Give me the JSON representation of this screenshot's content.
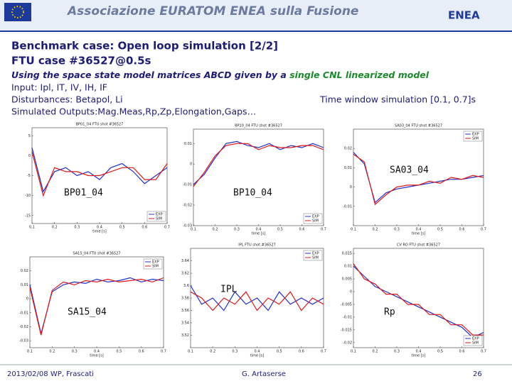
{
  "header": {
    "banner": "Associazione EURATOM ENEA sulla Fusione",
    "logo": "ENEA"
  },
  "slide": {
    "title_line1": "Benchmark case: Open loop simulation [2/2]",
    "title_line2": "FTU case #36527@0.5s",
    "subtitle_start": "Using the space state model matrices ABCD given by a",
    "subtitle_highlight": "single CNL linearized model",
    "input": "Input: Ipl, IT, IV, IH, IF",
    "disturbances": "Disturbances: Betapol, Li",
    "outputs": "Simulated Outputs:Mag.Meas,Rp,Zp,Elongation,Gaps…",
    "time_window": "Time window simulation [0.1, 0.7]s"
  },
  "footer": {
    "date": "2013/02/08  WP, Frascati",
    "author": "G. Artaserse",
    "page": "26"
  },
  "chart_data": [
    {
      "type": "line",
      "title": "BP01_04  FTU shot #36527",
      "annotation": "BP01_04",
      "xlabel": "time [s]",
      "legend": "lower right",
      "x": [
        0.1,
        0.15,
        0.2,
        0.25,
        0.3,
        0.35,
        0.4,
        0.45,
        0.5,
        0.55,
        0.6,
        0.65,
        0.7
      ],
      "xlim": [
        0.1,
        0.7
      ],
      "xticks": [
        0.1,
        0.2,
        0.3,
        0.4,
        0.5,
        0.6,
        0.7
      ],
      "ylim": [
        -17,
        7
      ],
      "yticks": [
        -15,
        -10,
        -5,
        0,
        5
      ],
      "series": [
        {
          "name": "EXP",
          "color": "#2030d0",
          "values": [
            2,
            -9,
            -4,
            -3,
            -5,
            -4,
            -6,
            -3,
            -2,
            -4,
            -7,
            -5,
            -3
          ]
        },
        {
          "name": "SIM",
          "color": "#e01818",
          "values": [
            1,
            -10,
            -3,
            -4,
            -4,
            -5,
            -5,
            -4,
            -3,
            -3,
            -6,
            -6,
            -2
          ]
        }
      ]
    },
    {
      "type": "line",
      "title": "BP10_04  FTU shot #36527",
      "annotation": "BP10_04",
      "xlabel": "time [s]",
      "legend": "lower right",
      "x": [
        0.1,
        0.15,
        0.2,
        0.25,
        0.3,
        0.35,
        0.4,
        0.45,
        0.5,
        0.55,
        0.6,
        0.65,
        0.7
      ],
      "xlim": [
        0.1,
        0.7
      ],
      "xticks": [
        0.1,
        0.2,
        0.3,
        0.4,
        0.5,
        0.6,
        0.7
      ],
      "ylim": [
        -0.03,
        0.017
      ],
      "yticks": [
        -0.03,
        -0.02,
        -0.01,
        0,
        0.01
      ],
      "series": [
        {
          "name": "EXP",
          "color": "#2030d0",
          "values": [
            -0.01,
            -0.005,
            0.003,
            0.01,
            0.011,
            0.009,
            0.008,
            0.01,
            0.007,
            0.009,
            0.008,
            0.01,
            0.008
          ]
        },
        {
          "name": "SIM",
          "color": "#e01818",
          "values": [
            -0.011,
            -0.004,
            0.004,
            0.009,
            0.01,
            0.01,
            0.007,
            0.009,
            0.008,
            0.008,
            0.009,
            0.009,
            0.007
          ]
        }
      ]
    },
    {
      "type": "line",
      "title": "SA03_04  FTU shot #36527",
      "annotation": "SA03_04",
      "xlabel": "time [s]",
      "legend": "upper right",
      "x": [
        0.1,
        0.15,
        0.2,
        0.25,
        0.3,
        0.35,
        0.4,
        0.45,
        0.5,
        0.55,
        0.6,
        0.65,
        0.7
      ],
      "xlim": [
        0.1,
        0.7
      ],
      "xticks": [
        0.1,
        0.2,
        0.3,
        0.4,
        0.5,
        0.6,
        0.7
      ],
      "ylim": [
        -0.02,
        0.03
      ],
      "yticks": [
        -0.01,
        0,
        0.01,
        0.02
      ],
      "series": [
        {
          "name": "EXP",
          "color": "#2030d0",
          "values": [
            0.018,
            0.012,
            -0.008,
            -0.003,
            -0.001,
            0,
            0.001,
            0.002,
            0.003,
            0.004,
            0.004,
            0.005,
            0.006
          ]
        },
        {
          "name": "SIM",
          "color": "#e01818",
          "values": [
            0.017,
            0.013,
            -0.009,
            -0.004,
            0,
            0.001,
            0.001,
            0.003,
            0.002,
            0.005,
            0.004,
            0.006,
            0.005
          ]
        }
      ]
    },
    {
      "type": "line",
      "title": "SA15_04  FTU shot #36527",
      "annotation": "SA15_04",
      "xlabel": "time [s]",
      "legend": "upper right",
      "x": [
        0.1,
        0.15,
        0.2,
        0.25,
        0.3,
        0.35,
        0.4,
        0.45,
        0.5,
        0.55,
        0.6,
        0.65,
        0.7
      ],
      "xlim": [
        0.1,
        0.7
      ],
      "xticks": [
        0.1,
        0.2,
        0.3,
        0.4,
        0.5,
        0.6,
        0.7
      ],
      "ylim": [
        -0.035,
        0.03
      ],
      "yticks": [
        -0.03,
        -0.02,
        -0.01,
        0,
        0.01,
        0.02
      ],
      "series": [
        {
          "name": "EXP",
          "color": "#2030d0",
          "values": [
            0.01,
            -0.025,
            0.005,
            0.01,
            0.012,
            0.011,
            0.014,
            0.012,
            0.013,
            0.015,
            0.012,
            0.014,
            0.013
          ]
        },
        {
          "name": "SIM",
          "color": "#e01818",
          "values": [
            0.008,
            -0.026,
            0.006,
            0.012,
            0.01,
            0.013,
            0.012,
            0.014,
            0.012,
            0.013,
            0.014,
            0.012,
            0.015
          ]
        }
      ]
    },
    {
      "type": "line",
      "title": "IPL  FTU shot #36527",
      "annotation": "IPL",
      "xlabel": "time [s]",
      "legend": "upper right",
      "x": [
        0.1,
        0.15,
        0.2,
        0.25,
        0.3,
        0.35,
        0.4,
        0.45,
        0.5,
        0.55,
        0.6,
        0.65,
        0.7
      ],
      "xlim": [
        0.1,
        0.7
      ],
      "xticks": [
        0.1,
        0.2,
        0.3,
        0.4,
        0.5,
        0.6,
        0.7
      ],
      "ylim": [
        3.5,
        3.66
      ],
      "yticks": [
        3.52,
        3.54,
        3.56,
        3.58,
        3.6,
        3.62,
        3.64
      ],
      "series": [
        {
          "name": "EXP",
          "color": "#2030d0",
          "values": [
            3.6,
            3.57,
            3.58,
            3.56,
            3.59,
            3.57,
            3.58,
            3.56,
            3.59,
            3.57,
            3.58,
            3.57,
            3.58
          ]
        },
        {
          "name": "SIM",
          "color": "#e01818",
          "values": [
            3.59,
            3.58,
            3.56,
            3.58,
            3.57,
            3.59,
            3.56,
            3.58,
            3.57,
            3.59,
            3.56,
            3.58,
            3.57
          ]
        }
      ]
    },
    {
      "type": "line",
      "title": "CV RO  FTU shot #36527",
      "annotation": "Rp",
      "xlabel": "time [s]",
      "legend": "lower right",
      "x": [
        0.1,
        0.15,
        0.2,
        0.25,
        0.3,
        0.35,
        0.4,
        0.45,
        0.5,
        0.55,
        0.6,
        0.65,
        0.7
      ],
      "xlim": [
        0.1,
        0.7
      ],
      "xticks": [
        0.1,
        0.2,
        0.3,
        0.4,
        0.5,
        0.6,
        0.7
      ],
      "ylim": [
        -0.022,
        0.017
      ],
      "yticks": [
        -0.02,
        -0.015,
        -0.01,
        -0.005,
        0,
        0.005,
        0.01,
        0.015
      ],
      "series": [
        {
          "name": "EXP",
          "color": "#2030d0",
          "values": [
            0.01,
            0.006,
            0.002,
            0,
            -0.002,
            -0.004,
            -0.006,
            -0.008,
            -0.01,
            -0.012,
            -0.014,
            -0.018,
            -0.016
          ]
        },
        {
          "name": "SIM",
          "color": "#e01818",
          "values": [
            0.011,
            0.005,
            0.003,
            -0.001,
            -0.001,
            -0.005,
            -0.005,
            -0.009,
            -0.009,
            -0.013,
            -0.013,
            -0.017,
            -0.017
          ]
        }
      ]
    }
  ]
}
